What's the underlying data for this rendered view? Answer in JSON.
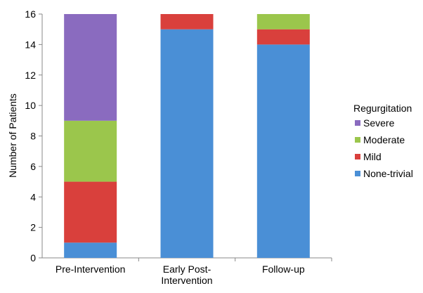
{
  "chart_data": {
    "type": "bar",
    "stacked": true,
    "categories": [
      [
        "Pre-Intervention"
      ],
      [
        "Early Post-",
        "Intervention"
      ],
      [
        "Follow-up"
      ]
    ],
    "series": [
      {
        "name": "None-trivial",
        "color": "#4a8fd6",
        "values": [
          1,
          15,
          14
        ]
      },
      {
        "name": "Mild",
        "color": "#d9403c",
        "values": [
          4,
          1,
          1
        ]
      },
      {
        "name": "Moderate",
        "color": "#9bc64c",
        "values": [
          4,
          0,
          1
        ]
      },
      {
        "name": "Severe",
        "color": "#8a6bbf",
        "values": [
          7,
          0,
          0
        ]
      }
    ],
    "ylabel": "Number of Patients",
    "ylim": [
      0,
      16
    ],
    "yticks": [
      0,
      2,
      4,
      6,
      8,
      10,
      12,
      14,
      16
    ],
    "legend": {
      "title": "Regurgitation",
      "position": "right",
      "order": [
        "Severe",
        "Moderate",
        "Mild",
        "None-trivial"
      ]
    },
    "grid": false
  }
}
